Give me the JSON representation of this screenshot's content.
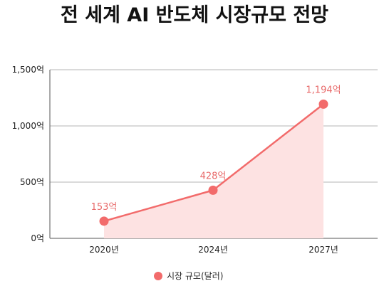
{
  "chart_data": {
    "type": "area",
    "title": "전 세계 AI 반도체 시장규모 전망",
    "categories": [
      "2020년",
      "2024년",
      "2027년"
    ],
    "series": [
      {
        "name": "시장 규모(달러)",
        "values": [
          153,
          428,
          1194
        ],
        "data_labels": [
          "153억",
          "428억",
          "1,194억"
        ]
      }
    ],
    "y_ticks": [
      {
        "value": 0,
        "label": "0억"
      },
      {
        "value": 500,
        "label": "500억"
      },
      {
        "value": 1000,
        "label": "1,000억"
      },
      {
        "value": 1500,
        "label": "1,500억"
      }
    ],
    "ylim": [
      0,
      1500
    ],
    "grid": true,
    "legend": "bottom",
    "colors": {
      "line": "#f26b6b",
      "area": "#fde2e2",
      "label": "#e86a6a",
      "grid": "#b5b5b5",
      "axis": "#555555"
    }
  }
}
